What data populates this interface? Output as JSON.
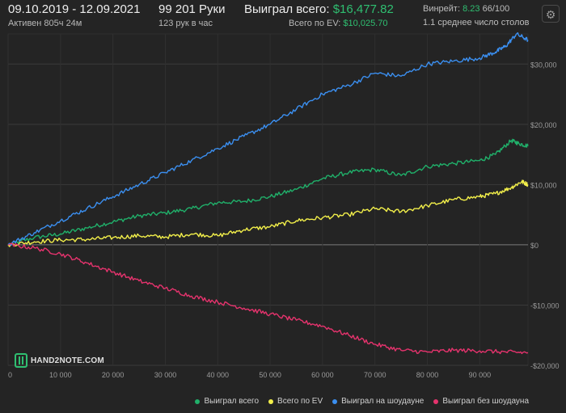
{
  "header": {
    "date_range": "09.10.2019 - 12.09.2021",
    "active_time": "Активен 805ч 24м",
    "hands": "99 201 Руки",
    "hands_per_hour": "123 рук в час",
    "won_total_label": "Выиграл всего:",
    "won_total_value": "$16,477.82",
    "ev_total_label": "Всего по EV:",
    "ev_total_value": "$10,025.70",
    "winrate_label": "Винрейт:",
    "winrate_value": "8.23",
    "winrate_suffix": "66/100",
    "avg_tables": "1.1 среднее число столов",
    "settings_icon": "gear-icon"
  },
  "watermark": {
    "text": "HAND2NOTE.COM",
    "icon": "h2n-logo"
  },
  "colors": {
    "won": "#20b06a",
    "ev": "#f2ef4a",
    "showdown": "#3b8ff0",
    "nonshowdown": "#e5336d",
    "accent": "#2fbf71"
  },
  "chart_data": {
    "type": "line",
    "xlim": [
      0,
      99201
    ],
    "ylim": [
      -20000,
      35000
    ],
    "x_ticks": [
      0,
      10000,
      20000,
      30000,
      40000,
      50000,
      60000,
      70000,
      80000,
      90000
    ],
    "x_tick_labels": [
      "0",
      "10 000",
      "20 000",
      "30 000",
      "40 000",
      "50 000",
      "60 000",
      "70 000",
      "80 000",
      "90 000"
    ],
    "y_ticks": [
      30000,
      20000,
      10000,
      0,
      -10000,
      -20000
    ],
    "y_tick_labels": [
      "$30,000",
      "$20,000",
      "$10,000",
      "$0",
      "-$10,000",
      "-$20,000"
    ],
    "grid": true,
    "legend_position": "bottom-right",
    "series": [
      {
        "name": "Выиграл всего",
        "color_key": "won",
        "x": [
          0,
          5000,
          10000,
          15000,
          20000,
          25000,
          30000,
          35000,
          40000,
          45000,
          50000,
          55000,
          60000,
          65000,
          70000,
          75000,
          80000,
          85000,
          90000,
          93000,
          96000,
          97500,
          99201
        ],
        "y": [
          0,
          1200,
          1800,
          2800,
          3800,
          4800,
          5300,
          6000,
          7000,
          7200,
          8000,
          9200,
          11000,
          12000,
          12500,
          11500,
          13000,
          13500,
          14000,
          15000,
          17300,
          16800,
          16400
        ]
      },
      {
        "name": "Всего по EV",
        "color_key": "ev",
        "x": [
          0,
          5000,
          10000,
          15000,
          20000,
          25000,
          30000,
          35000,
          40000,
          45000,
          50000,
          55000,
          60000,
          65000,
          70000,
          75000,
          80000,
          85000,
          90000,
          93000,
          96000,
          98000,
          99201
        ],
        "y": [
          0,
          500,
          800,
          900,
          1200,
          1500,
          1300,
          1800,
          1500,
          2500,
          3000,
          4000,
          4500,
          5000,
          6000,
          5500,
          6500,
          7500,
          8000,
          8500,
          9500,
          10500,
          10000
        ]
      },
      {
        "name": "Выиграл на шоудауне",
        "color_key": "showdown",
        "x": [
          0,
          5000,
          10000,
          15000,
          20000,
          25000,
          30000,
          35000,
          40000,
          45000,
          50000,
          55000,
          60000,
          65000,
          70000,
          75000,
          80000,
          85000,
          90000,
          93000,
          95000,
          97000,
          99201
        ],
        "y": [
          0,
          2000,
          4000,
          6000,
          8000,
          10000,
          12000,
          14000,
          16000,
          18000,
          20000,
          22500,
          25000,
          26500,
          28500,
          28000,
          30000,
          30500,
          31000,
          32000,
          33000,
          35000,
          34000
        ]
      },
      {
        "name": "Выиграл без шоудауна",
        "color_key": "nonshowdown",
        "x": [
          0,
          5000,
          10000,
          15000,
          20000,
          25000,
          30000,
          35000,
          40000,
          45000,
          50000,
          55000,
          60000,
          65000,
          70000,
          75000,
          80000,
          85000,
          90000,
          95000,
          99201
        ],
        "y": [
          0,
          -500,
          -1500,
          -3000,
          -4500,
          -6000,
          -7200,
          -8500,
          -9500,
          -10500,
          -11500,
          -12500,
          -13500,
          -15000,
          -16500,
          -17500,
          -17800,
          -17500,
          -17600,
          -17800,
          -17900
        ]
      }
    ]
  }
}
